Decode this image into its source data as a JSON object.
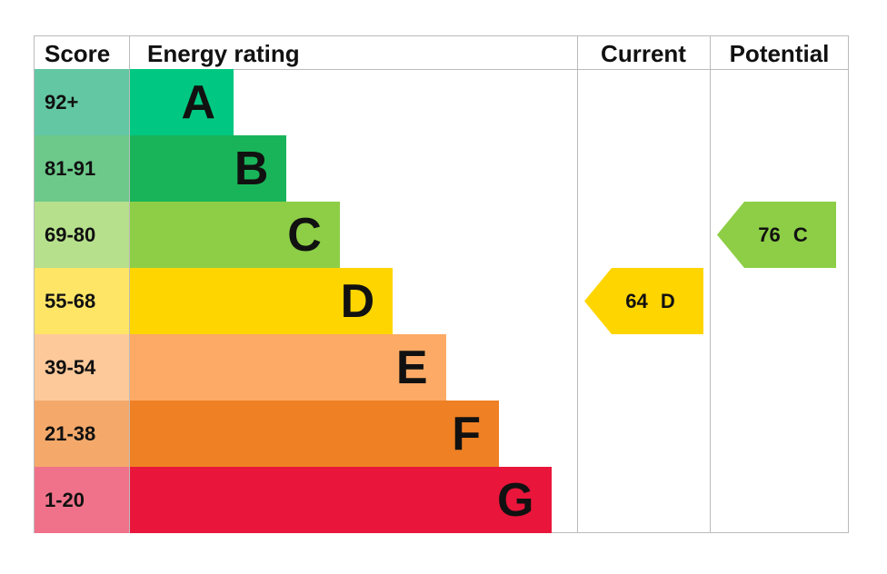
{
  "headers": {
    "score": "Score",
    "rating": "Energy rating",
    "current": "Current",
    "potential": "Potential"
  },
  "chart_data": {
    "type": "bar",
    "bands": [
      {
        "letter": "A",
        "range": "92+",
        "color": "#00c781",
        "score_color": "#63c7a4"
      },
      {
        "letter": "B",
        "range": "81-91",
        "color": "#19b459",
        "score_color": "#6cc98a"
      },
      {
        "letter": "C",
        "range": "69-80",
        "color": "#8dce46",
        "score_color": "#b6e08c"
      },
      {
        "letter": "D",
        "range": "55-68",
        "color": "#ffd500",
        "score_color": "#ffe566"
      },
      {
        "letter": "E",
        "range": "39-54",
        "color": "#fcaa65",
        "score_color": "#fdc99b"
      },
      {
        "letter": "F",
        "range": "21-38",
        "color": "#ef8023",
        "score_color": "#f4a96b"
      },
      {
        "letter": "G",
        "range": "1-20",
        "color": "#e9153b",
        "score_color": "#f0728a"
      }
    ],
    "current": {
      "value": 64,
      "letter": "D",
      "label": "64 D",
      "color": "#ffd500"
    },
    "potential": {
      "value": 76,
      "letter": "C",
      "label": "76 C",
      "color": "#8dce46"
    }
  }
}
